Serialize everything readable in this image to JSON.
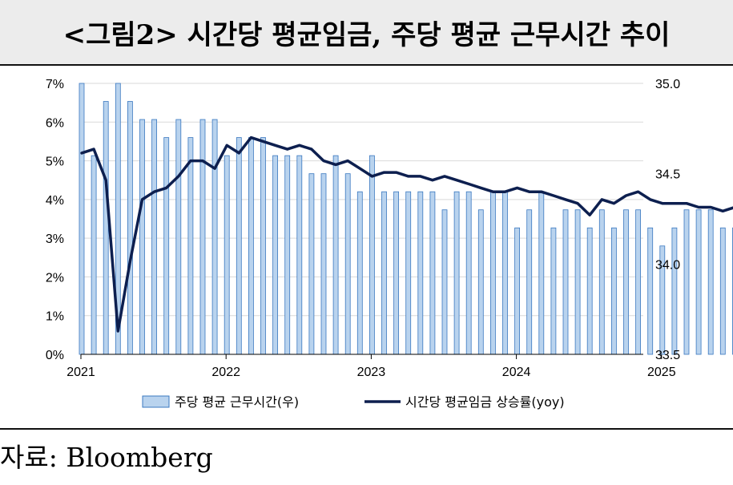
{
  "header": {
    "title": "<그림2> 시간당 평균임금, 주당 평균 근무시간 추이"
  },
  "footer": {
    "source": "자료: Bloomberg"
  },
  "colors": {
    "bar_fill": "#b9d3ee",
    "bar_stroke": "#3a78c0",
    "line": "#0d1f4f",
    "grid": "#d9d9d9"
  },
  "chart_data": {
    "type": "bar+line",
    "x_tick_labels": [
      "2021",
      "2022",
      "2023",
      "2024",
      "2025"
    ],
    "y_left": {
      "range": [
        0,
        7
      ],
      "tick_labels": [
        "0%",
        "1%",
        "2%",
        "3%",
        "4%",
        "5%",
        "6%",
        "7%"
      ]
    },
    "y_right": {
      "range": [
        33.5,
        35.0
      ],
      "tick_labels": [
        "33.5",
        "34.0",
        "34.5",
        "35.0"
      ]
    },
    "x_start": "2021-01",
    "series": [
      {
        "name": "주당 평균 근무시간(우)",
        "type": "bar",
        "axis": "right",
        "values": [
          35.0,
          34.6,
          34.9,
          35.0,
          34.9,
          34.8,
          34.8,
          34.7,
          34.8,
          34.7,
          34.8,
          34.8,
          34.6,
          34.7,
          34.7,
          34.7,
          34.6,
          34.6,
          34.6,
          34.5,
          34.5,
          34.6,
          34.5,
          34.4,
          34.6,
          34.4,
          34.4,
          34.4,
          34.4,
          34.4,
          34.3,
          34.4,
          34.4,
          34.3,
          34.4,
          34.4,
          34.2,
          34.3,
          34.4,
          34.2,
          34.3,
          34.3,
          34.2,
          34.3,
          34.2,
          34.3,
          34.3,
          34.2,
          34.1,
          34.2,
          34.3,
          34.3,
          34.3,
          34.2,
          34.2,
          34.2
        ]
      },
      {
        "name": "시간당 평균임금 상승률(yoy)",
        "type": "line",
        "axis": "left",
        "values": [
          5.2,
          5.3,
          4.5,
          0.6,
          2.4,
          4.0,
          4.2,
          4.3,
          4.6,
          5.0,
          5.0,
          4.8,
          5.4,
          5.2,
          5.6,
          5.5,
          5.4,
          5.3,
          5.4,
          5.3,
          5.0,
          4.9,
          5.0,
          4.8,
          4.6,
          4.7,
          4.7,
          4.6,
          4.6,
          4.5,
          4.6,
          4.5,
          4.4,
          4.3,
          4.2,
          4.2,
          4.3,
          4.2,
          4.2,
          4.1,
          4.0,
          3.9,
          3.6,
          4.0,
          3.9,
          4.1,
          4.2,
          4.0,
          3.9,
          3.9,
          3.9,
          3.8,
          3.8,
          3.7,
          3.8,
          3.7
        ]
      }
    ],
    "legend": {
      "bar_label": "주당 평균 근무시간(우)",
      "line_label": "시간당 평균임금 상승률(yoy)",
      "position": "bottom"
    },
    "grid": "horizontal"
  }
}
